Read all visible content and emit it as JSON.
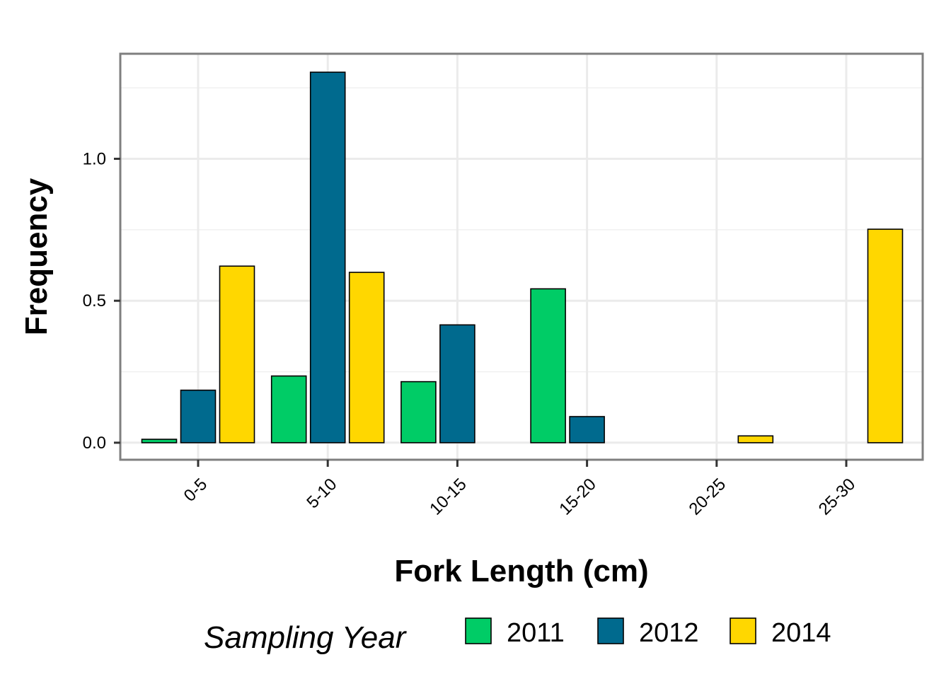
{
  "chart_data": {
    "type": "bar",
    "categories": [
      "0-5",
      "5-10",
      "10-15",
      "15-20",
      "20-25",
      "25-30"
    ],
    "series": [
      {
        "name": "2011",
        "color": "#00CC66",
        "values": [
          0.012,
          0.235,
          0.215,
          0.542,
          0.0,
          0.0
        ]
      },
      {
        "name": "2012",
        "color": "#006A8E",
        "values": [
          0.185,
          1.305,
          0.415,
          0.092,
          0.0,
          0.0
        ]
      },
      {
        "name": "2014",
        "color": "#FFD700",
        "values": [
          0.622,
          0.6,
          0.0,
          0.0,
          0.024,
          0.752
        ]
      }
    ],
    "xlabel": "Fork Length (cm)",
    "ylabel": "Frequency",
    "ylim": [
      -0.06,
      1.37
    ],
    "yticks": [
      0.0,
      0.5,
      1.0
    ],
    "ytick_labels": [
      "0.0",
      "0.5",
      "1.0"
    ],
    "grid": true,
    "legend": {
      "title": "Sampling Year",
      "position": "bottom"
    }
  }
}
